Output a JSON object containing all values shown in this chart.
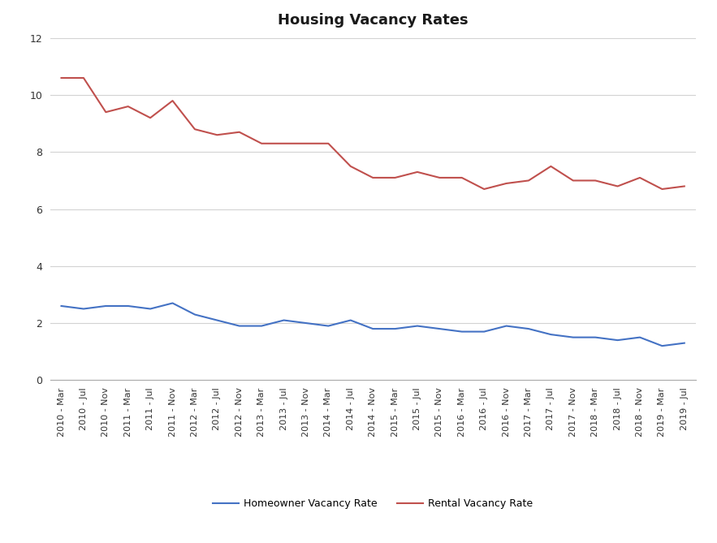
{
  "title": "Housing Vacancy Rates",
  "labels": [
    "2010 - Mar",
    "2010 - Jul",
    "2010 - Nov",
    "2011 - Mar",
    "2011 - Jul",
    "2011 - Nov",
    "2012 - Mar",
    "2012 - Jul",
    "2012 - Nov",
    "2013 - Mar",
    "2013 - Jul",
    "2013 - Nov",
    "2014 - Mar",
    "2014 - Jul",
    "2014 - Nov",
    "2015 - Mar",
    "2015 - Jul",
    "2015 - Nov",
    "2016 - Mar",
    "2016 - Jul",
    "2016 - Nov",
    "2017 - Mar",
    "2017 - Jul",
    "2017 - Nov",
    "2018 - Mar",
    "2018 - Jul",
    "2018 - Nov",
    "2019 - Mar",
    "2019 - Jul"
  ],
  "homeowner": [
    2.6,
    2.5,
    2.6,
    2.6,
    2.5,
    2.7,
    2.3,
    2.1,
    1.9,
    1.9,
    2.1,
    2.0,
    1.9,
    2.1,
    1.8,
    1.8,
    1.9,
    1.8,
    1.7,
    1.7,
    1.9,
    1.8,
    1.6,
    1.5,
    1.5,
    1.4,
    1.5,
    1.2,
    1.3
  ],
  "rental": [
    10.6,
    10.6,
    9.4,
    9.6,
    9.2,
    9.8,
    8.8,
    8.6,
    8.7,
    8.3,
    8.3,
    8.3,
    8.3,
    7.5,
    7.1,
    7.1,
    7.3,
    7.1,
    7.1,
    6.7,
    6.9,
    7.0,
    7.5,
    7.0,
    7.0,
    6.8,
    7.1,
    6.7,
    6.8
  ],
  "homeowner_color": "#4472c4",
  "rental_color": "#c0504d",
  "background_color": "#ffffff",
  "ylim": [
    0,
    12
  ],
  "yticks": [
    0,
    2,
    4,
    6,
    8,
    10,
    12
  ],
  "grid_color": "#d3d3d3",
  "legend_homeowner": "Homeowner Vacancy Rate",
  "legend_rental": "Rental Vacancy Rate",
  "title_fontsize": 13,
  "tick_fontsize": 8,
  "ytick_fontsize": 9
}
